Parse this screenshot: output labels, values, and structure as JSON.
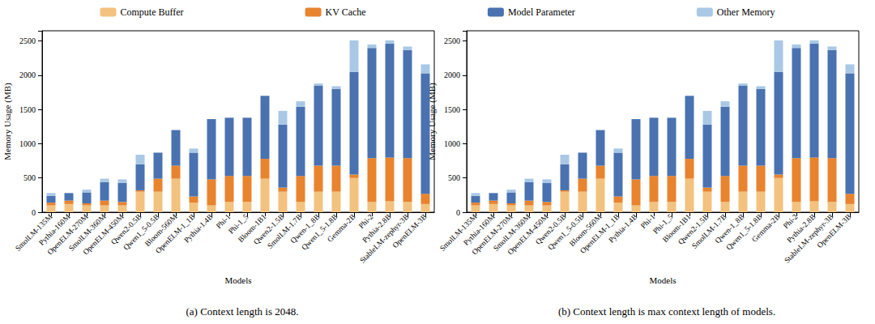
{
  "chart_data": [
    {
      "type": "bar",
      "title": "(a) Context length is 2048.",
      "x_label": "Models",
      "y_label": "Memory Usage (MB)",
      "categories": [
        "SmolLM-135M",
        "Pythia-160M",
        "OpenELM-270M",
        "SmolLM-360M",
        "OpenELM-450M",
        "Qwen2-0.5B",
        "Qwen1_5-0.5B",
        "Bloom-560M",
        "OpenELM-1_1B",
        "Pythia-1.4B",
        "Phi-1",
        "Phi-1_5",
        "Bloom-1B1",
        "Qwen2-1.5B",
        "SmolLM-1.7B",
        "Qwen-1_8B",
        "Qwen1_5-1.8B",
        "Gemma-2B",
        "Phi-2",
        "Pythia-2.8B",
        "StableLM-zephyr-3B",
        "OpenELM-3B"
      ],
      "series": [
        {
          "name": "Compute Buffer",
          "color": "#f2c27e",
          "values": [
            100,
            120,
            100,
            100,
            100,
            300,
            300,
            490,
            140,
            100,
            150,
            150,
            490,
            300,
            150,
            300,
            300,
            500,
            150,
            160,
            150,
            120
          ]
        },
        {
          "name": "KV Cache",
          "color": "#e8832e",
          "values": [
            40,
            50,
            30,
            70,
            50,
            20,
            190,
            190,
            90,
            380,
            380,
            380,
            290,
            60,
            380,
            380,
            380,
            50,
            640,
            640,
            640,
            150
          ]
        },
        {
          "name": "Model Parameter",
          "color": "#4a72b0",
          "values": [
            100,
            110,
            160,
            270,
            280,
            380,
            380,
            520,
            640,
            880,
            850,
            850,
            920,
            920,
            1010,
            1170,
            1120,
            1500,
            1610,
            1660,
            1580,
            1760
          ]
        },
        {
          "name": "Other Memory",
          "color": "#a9c8e6",
          "values": [
            40,
            0,
            40,
            50,
            50,
            140,
            0,
            0,
            60,
            0,
            0,
            0,
            0,
            200,
            80,
            30,
            40,
            460,
            50,
            50,
            50,
            130
          ]
        }
      ],
      "stacked": true,
      "legend": "top",
      "ylim": [
        0,
        2650
      ],
      "yticks": [
        0,
        500,
        1000,
        1500,
        2000,
        2500
      ]
    },
    {
      "type": "bar",
      "title": "(b) Context length is max context length of models.",
      "x_label": "Models",
      "y_label": "Memory Usage (MB)",
      "categories": [
        "SmolLM-135M",
        "Pythia-160M",
        "OpenELM-270M",
        "SmolLM-360M",
        "OpenELM-450M",
        "Qwen2-0.5B",
        "Qwen1_5-0.5B",
        "Bloom-560M",
        "OpenELM-1_1B",
        "Pythia-1.4B",
        "Phi-1",
        "Phi-1_5",
        "Bloom-1B1",
        "Qwen2-1.5B",
        "SmolLM-1.7B",
        "Qwen-1_8B",
        "Qwen1_5-1.8B",
        "Gemma-2B",
        "Phi-2",
        "Pythia-2.8B",
        "StableLM-zephyr-3B",
        "OpenELM-3B"
      ],
      "series": [
        {
          "name": "Compute Buffer",
          "color": "#f2c27e",
          "values": [
            100,
            120,
            100,
            100,
            100,
            300,
            300,
            490,
            140,
            100,
            150,
            150,
            490,
            300,
            150,
            300,
            300,
            500,
            150,
            160,
            150,
            120
          ]
        },
        {
          "name": "KV Cache",
          "color": "#e8832e",
          "values": [
            40,
            50,
            30,
            70,
            50,
            20,
            190,
            190,
            90,
            380,
            380,
            380,
            290,
            60,
            380,
            380,
            380,
            50,
            640,
            640,
            640,
            150
          ]
        },
        {
          "name": "Model Parameter",
          "color": "#4a72b0",
          "values": [
            100,
            110,
            160,
            270,
            280,
            380,
            380,
            520,
            640,
            880,
            850,
            850,
            920,
            920,
            1010,
            1170,
            1120,
            1500,
            1610,
            1660,
            1580,
            1760
          ]
        },
        {
          "name": "Other Memory",
          "color": "#a9c8e6",
          "values": [
            40,
            0,
            40,
            50,
            50,
            140,
            0,
            0,
            60,
            0,
            0,
            0,
            0,
            200,
            80,
            30,
            40,
            460,
            50,
            50,
            50,
            130
          ]
        }
      ],
      "stacked": true,
      "legend": "top",
      "ylim": [
        0,
        2650
      ],
      "yticks": [
        0,
        500,
        1000,
        1500,
        2000,
        2500
      ]
    }
  ]
}
